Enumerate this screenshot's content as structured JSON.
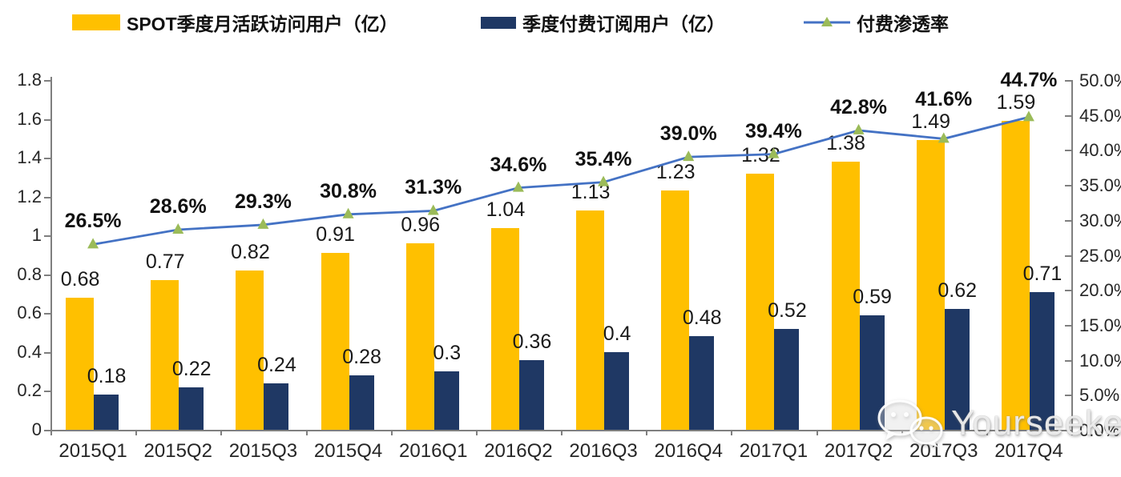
{
  "legend": {
    "items": [
      {
        "label": "SPOT季度月活跃访问用户（亿）",
        "swatch": "bar",
        "color": "#FFC000"
      },
      {
        "label": "季度付费订阅用户（亿）",
        "swatch": "bar",
        "color": "#1F3864"
      },
      {
        "label": "付费渗透率",
        "swatch": "line-marker",
        "line_color": "#4472C4",
        "marker_color": "#9BBB59"
      }
    ]
  },
  "chart_data": {
    "type": "combo-bar-line",
    "categories": [
      "2015Q1",
      "2015Q2",
      "2015Q3",
      "2015Q4",
      "2016Q1",
      "2016Q2",
      "2016Q3",
      "2016Q4",
      "2017Q1",
      "2017Q2",
      "2017Q3",
      "2017Q4"
    ],
    "series": [
      {
        "name": "SPOT季度月活跃访问用户（亿）",
        "type": "bar",
        "axis": "left",
        "color": "#FFC000",
        "values": [
          0.68,
          0.77,
          0.82,
          0.91,
          0.96,
          1.04,
          1.13,
          1.23,
          1.32,
          1.38,
          1.49,
          1.59
        ],
        "labels": [
          "0.68",
          "0.77",
          "0.82",
          "0.91",
          "0.96",
          "1.04",
          "1.13",
          "1.23",
          "1.32",
          "1.38",
          "1.49",
          "1.59"
        ]
      },
      {
        "name": "季度付费订阅用户（亿）",
        "type": "bar",
        "axis": "left",
        "color": "#1F3864",
        "values": [
          0.18,
          0.22,
          0.24,
          0.28,
          0.3,
          0.36,
          0.4,
          0.48,
          0.52,
          0.59,
          0.62,
          0.71
        ],
        "labels": [
          "0.18",
          "0.22",
          "0.24",
          "0.28",
          "0.3",
          "0.36",
          "0.4",
          "0.48",
          "0.52",
          "0.59",
          "0.62",
          "0.71"
        ]
      },
      {
        "name": "付费渗透率",
        "type": "line",
        "axis": "right",
        "color": "#4472C4",
        "marker": "triangle",
        "marker_color": "#9BBB59",
        "values": [
          26.5,
          28.6,
          29.3,
          30.8,
          31.3,
          34.6,
          35.4,
          39.0,
          39.4,
          42.8,
          41.6,
          44.7
        ],
        "labels": [
          "26.5%",
          "28.6%",
          "29.3%",
          "30.8%",
          "31.3%",
          "34.6%",
          "35.4%",
          "39.0%",
          "39.4%",
          "42.8%",
          "41.6%",
          "44.7%"
        ]
      }
    ],
    "left_axis": {
      "min": 0,
      "max": 1.8,
      "tick_labels": [
        "0",
        "0.2",
        "0.4",
        "0.6",
        "0.8",
        "1",
        "1.2",
        "1.4",
        "1.6",
        "1.8"
      ]
    },
    "right_axis": {
      "min": 0,
      "max": 50,
      "tick_labels": [
        "0.0%",
        "5.0%",
        "10.0%",
        "15.0%",
        "20.0%",
        "25.0%",
        "30.0%",
        "35.0%",
        "40.0%",
        "45.0%",
        "50.0%"
      ]
    },
    "grid": false,
    "legend_position": "top"
  },
  "watermark": {
    "text": "Yourseeker",
    "icon": "wechat-icon"
  }
}
